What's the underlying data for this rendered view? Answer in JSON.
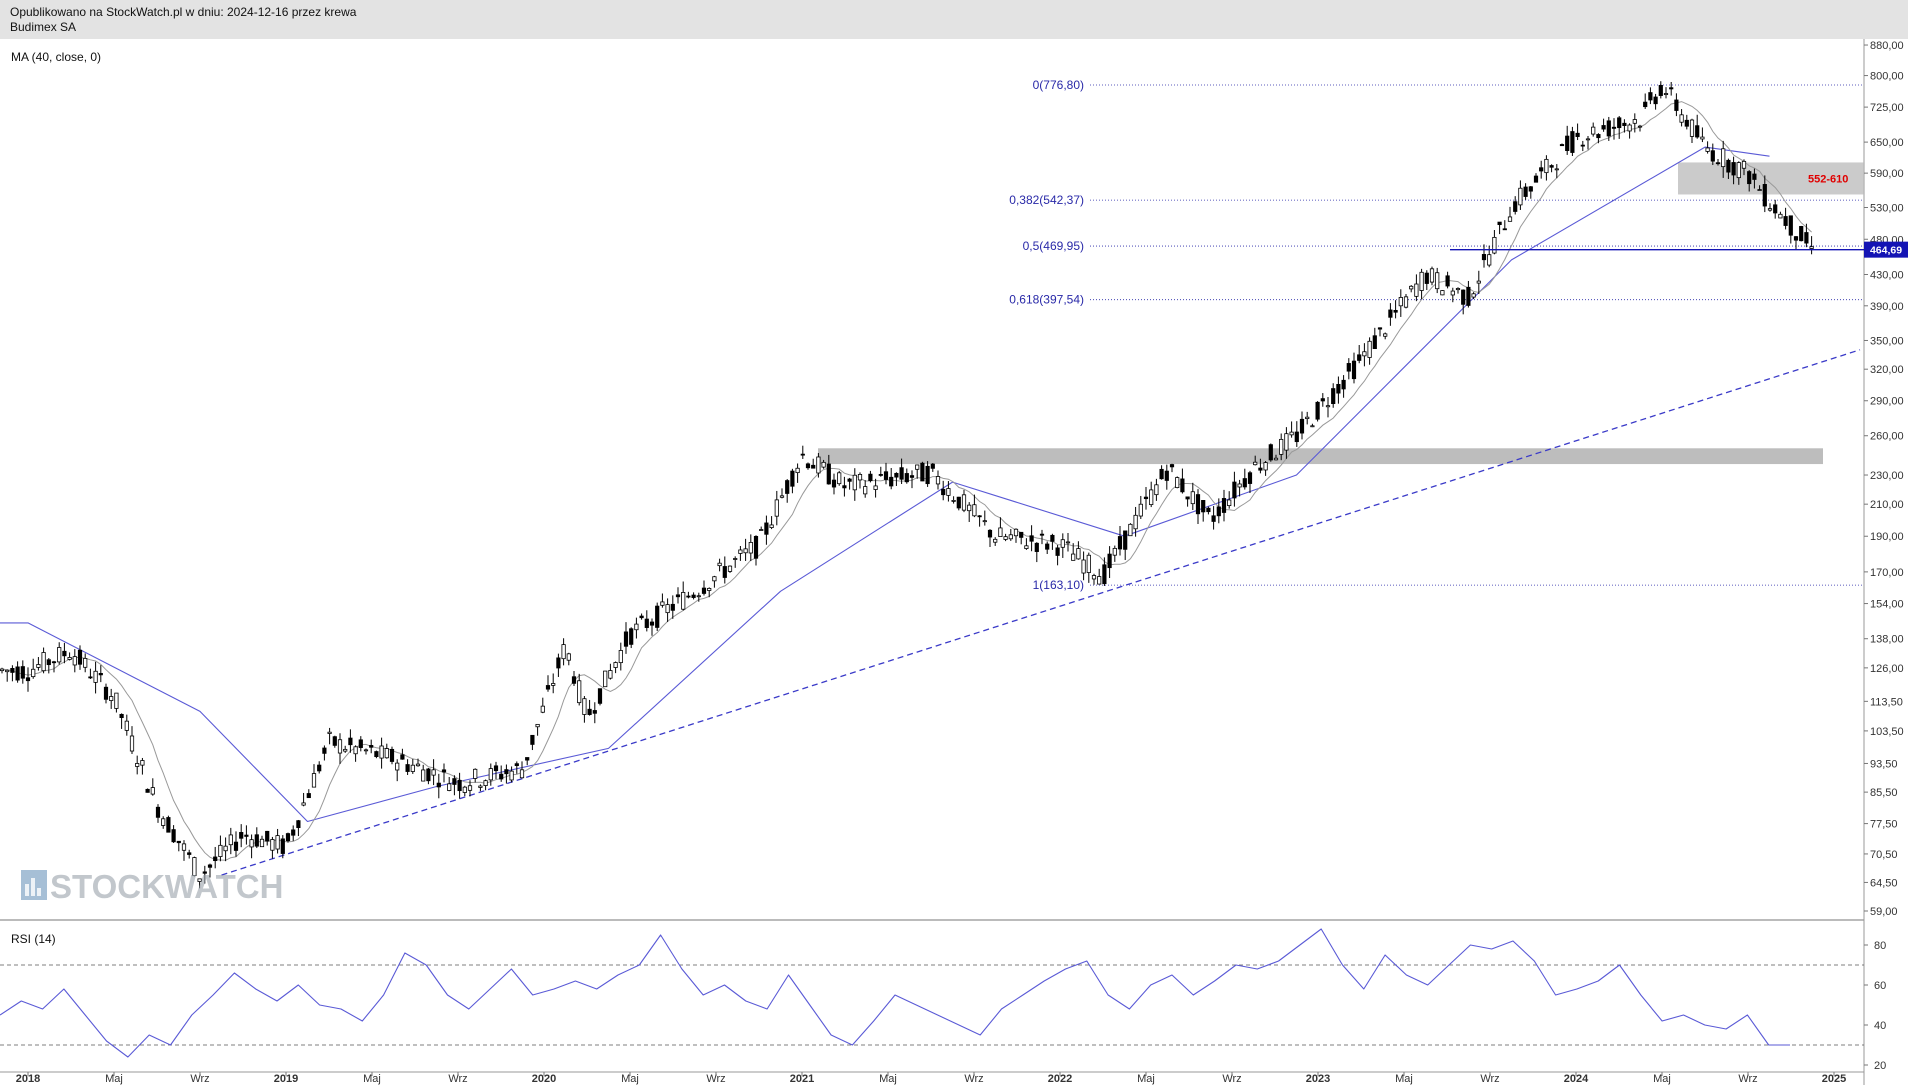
{
  "header": {
    "published": "Opublikowano na StockWatch.pl w dniu: 2024-12-16 przez krewa",
    "instrument": "Budimex SA"
  },
  "indicators": {
    "ma_label": "MA (40, close, 0)",
    "rsi_label": "RSI (14)"
  },
  "watermark": "STOCKWATCH",
  "colors": {
    "fib": "#2929a8",
    "ma": "#5a5ad6",
    "last_price_bg": "#1414b4",
    "zone_label": "#e00000",
    "trendline": "#3a3ac8",
    "candle": "#000000",
    "ma_fast": "#999999"
  },
  "chart_data": [
    {
      "type": "candlestick",
      "title": "Budimex SA",
      "y_scale": "log",
      "y_ticks": [
        "880,00",
        "800,00",
        "725,00",
        "650,00",
        "590,00",
        "530,00",
        "480,00",
        "430,00",
        "390,00",
        "350,00",
        "320,00",
        "290,00",
        "260,00",
        "230,00",
        "210,00",
        "190,00",
        "170,00",
        "154,00",
        "138,00",
        "126,00",
        "113,50",
        "103,50",
        "93,50",
        "85,50",
        "77,50",
        "70,50",
        "64,50",
        "59,00"
      ],
      "x_ticks": [
        "2018",
        "Maj",
        "Wrz",
        "2019",
        "Maj",
        "Wrz",
        "2020",
        "Maj",
        "Wrz",
        "2021",
        "Maj",
        "Wrz",
        "2022",
        "Maj",
        "Wrz",
        "2023",
        "Maj",
        "Wrz",
        "2024",
        "Maj",
        "Wrz",
        "2025"
      ],
      "series": [
        {
          "name": "MA (40, close, 0)",
          "key_points": [
            [
              "2018-01",
              145
            ],
            [
              "2018-09",
              110
            ],
            [
              "2019-02",
              78
            ],
            [
              "2019-08",
              87
            ],
            [
              "2020-04",
              98
            ],
            [
              "2020-12",
              160
            ],
            [
              "2021-08",
              225
            ],
            [
              "2022-04",
              190
            ],
            [
              "2022-12",
              230
            ],
            [
              "2023-10",
              450
            ],
            [
              "2024-07",
              640
            ],
            [
              "2024-10",
              622
            ]
          ]
        }
      ],
      "price_path": [
        [
          "2018-01",
          125
        ],
        [
          "2018-03",
          133
        ],
        [
          "2018-05",
          115
        ],
        [
          "2018-07",
          82
        ],
        [
          "2018-09",
          66
        ],
        [
          "2018-11",
          75
        ],
        [
          "2019-01",
          72
        ],
        [
          "2019-03",
          100
        ],
        [
          "2019-06",
          95
        ],
        [
          "2019-09",
          88
        ],
        [
          "2019-12",
          92
        ],
        [
          "2020-02",
          135
        ],
        [
          "2020-03",
          108
        ],
        [
          "2020-05",
          140
        ],
        [
          "2020-08",
          160
        ],
        [
          "2020-11",
          185
        ],
        [
          "2021-01",
          245
        ],
        [
          "2021-03",
          222
        ],
        [
          "2021-07",
          232
        ],
        [
          "2021-10",
          190
        ],
        [
          "2022-01",
          185
        ],
        [
          "2022-03",
          168
        ],
        [
          "2022-06",
          235
        ],
        [
          "2022-08",
          200
        ],
        [
          "2022-10",
          235
        ],
        [
          "2022-12",
          260
        ],
        [
          "2023-03",
          330
        ],
        [
          "2023-06",
          430
        ],
        [
          "2023-08",
          400
        ],
        [
          "2023-10",
          530
        ],
        [
          "2024-01",
          660
        ],
        [
          "2024-04",
          700
        ],
        [
          "2024-05",
          776
        ],
        [
          "2024-07",
          640
        ],
        [
          "2024-09",
          590
        ],
        [
          "2024-10",
          540
        ],
        [
          "2024-12",
          465
        ]
      ],
      "fibonacci": [
        {
          "label": "0(776,80)",
          "value": 776.8
        },
        {
          "label": "0,382(542,37)",
          "value": 542.37
        },
        {
          "label": "0,5(469,95)",
          "value": 469.95
        },
        {
          "label": "0,618(397,54)",
          "value": 397.54
        },
        {
          "label": "1(163,10)",
          "value": 163.1
        }
      ],
      "zones": [
        {
          "label": "552-610",
          "from": 552,
          "to": 610
        },
        {
          "label": "",
          "from": 238,
          "to": 250
        }
      ],
      "last_price": {
        "label": "464,69",
        "value": 464.69
      },
      "trendline": {
        "from": [
          "2018-10",
          66
        ],
        "to": [
          "2025-01",
          340
        ]
      }
    },
    {
      "type": "line",
      "title": "RSI (14)",
      "y_ticks": [
        "80",
        "60",
        "40",
        "20"
      ],
      "levels": [
        70,
        30
      ],
      "series": [
        {
          "name": "RSI (14)",
          "values": [
            45,
            52,
            48,
            58,
            45,
            32,
            24,
            35,
            30,
            45,
            55,
            66,
            58,
            52,
            60,
            50,
            48,
            42,
            55,
            76,
            70,
            55,
            48,
            58,
            68,
            55,
            58,
            62,
            58,
            65,
            70,
            85,
            68,
            55,
            60,
            52,
            48,
            65,
            50,
            35,
            30,
            42,
            55,
            50,
            45,
            40,
            35,
            48,
            55,
            62,
            68,
            72,
            55,
            48,
            60,
            65,
            55,
            62,
            70,
            68,
            72,
            80,
            88,
            70,
            58,
            75,
            65,
            60,
            70,
            80,
            78,
            82,
            72,
            55,
            58,
            62,
            70,
            55,
            42,
            45,
            40,
            38,
            45,
            30,
            30
          ]
        }
      ]
    }
  ]
}
